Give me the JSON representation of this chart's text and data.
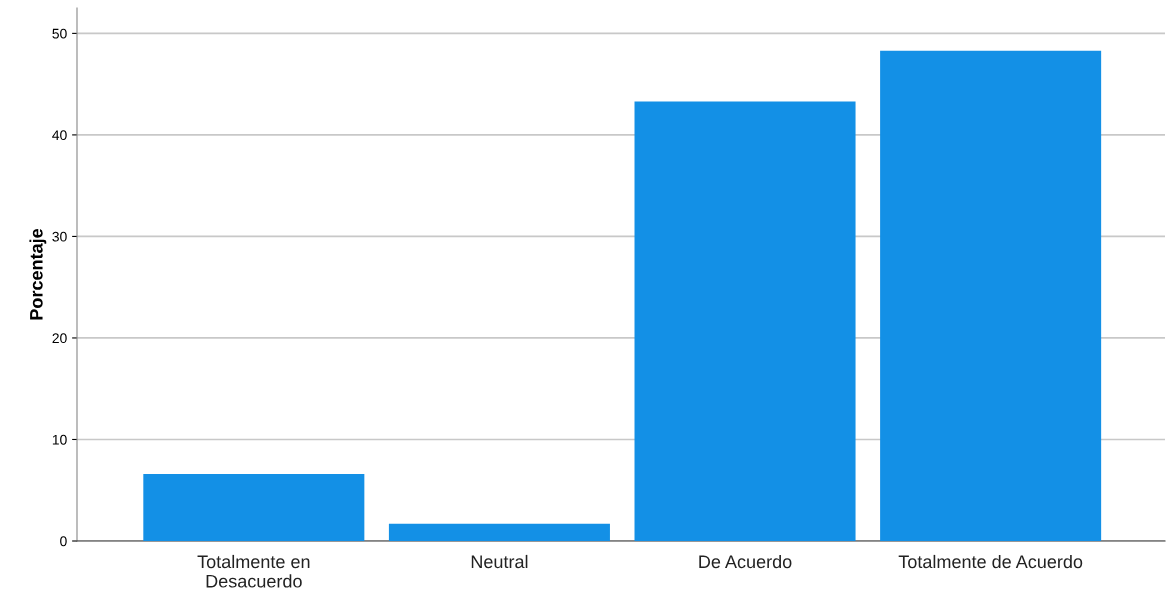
{
  "chart_data": {
    "type": "bar",
    "ylabel": "Porcentaje",
    "categories": [
      "Totalmente en\nDesacuerdo",
      "Neutral",
      "De Acuerdo",
      "Totalmente de Acuerdo"
    ],
    "values": [
      6.6,
      1.7,
      43.3,
      48.3
    ],
    "color": "#1390e6",
    "ylim": [
      0,
      52.5
    ],
    "yticks": [
      0,
      10,
      20,
      30,
      40,
      50
    ],
    "grid": "y"
  }
}
